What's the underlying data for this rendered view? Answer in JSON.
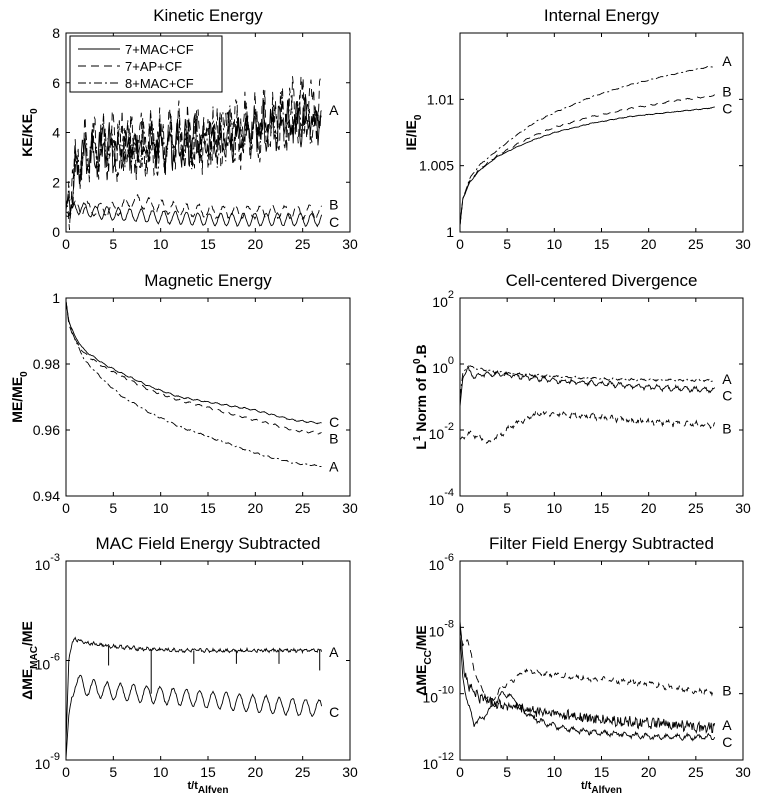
{
  "figure": {
    "n_panels": 6
  },
  "chart_data": [
    {
      "type": "line",
      "title": "Kinetic Energy",
      "ylabel": "KE/KE",
      "ylabel_sub": "0",
      "xlabel": "",
      "xlim": [
        0,
        30
      ],
      "ylim": [
        0,
        8
      ],
      "yscale": "linear",
      "xticks": [
        "0",
        "5",
        "10",
        "15",
        "20",
        "25",
        "30"
      ],
      "yticks": [
        {
          "v": 0,
          "t": "0"
        },
        {
          "v": 2,
          "t": "2"
        },
        {
          "v": 4,
          "t": "4"
        },
        {
          "v": 6,
          "t": "6"
        },
        {
          "v": 8,
          "t": "8"
        }
      ],
      "legend": [
        {
          "label": "7+MAC+CF",
          "dash": "solid"
        },
        {
          "label": "7+AP+CF",
          "dash": "dashed"
        },
        {
          "label": "8+MAC+CF",
          "dash": "dashdot"
        }
      ],
      "legend_position": "top-left",
      "series": [
        {
          "name": "A",
          "dash": "dashdot",
          "noise": 0.7,
          "osc": 0.6,
          "period": 0.9,
          "x": [
            0,
            0.5,
            1,
            2,
            4,
            8,
            12,
            16,
            20,
            24,
            27
          ],
          "y": [
            0.8,
            1.6,
            2.6,
            3.2,
            3.4,
            3.5,
            3.6,
            3.8,
            4.2,
            4.6,
            4.8
          ]
        },
        {
          "name": "A",
          "dash": "solid",
          "noise": 0.6,
          "osc": 0.5,
          "period": 0.9,
          "x": [
            0,
            0.5,
            1,
            2,
            4,
            8,
            12,
            16,
            20,
            24,
            27
          ],
          "y": [
            0.8,
            1.5,
            2.5,
            3.1,
            3.3,
            3.4,
            3.5,
            3.7,
            4.0,
            4.4,
            4.6
          ]
        },
        {
          "name": "A",
          "dash": "dashed",
          "noise": 0.7,
          "osc": 0.9,
          "period": 1.0,
          "x": [
            0,
            0.5,
            1,
            2,
            4,
            8,
            12,
            16,
            20,
            24,
            27
          ],
          "y": [
            0.8,
            1.5,
            2.6,
            3.2,
            3.4,
            3.5,
            3.7,
            3.9,
            4.2,
            4.7,
            5.2
          ]
        },
        {
          "name": "B",
          "dash": "dashed",
          "noise": 0.05,
          "osc": 0.25,
          "period": 1.3,
          "x": [
            0,
            1,
            3,
            5,
            6,
            7,
            9,
            12,
            16,
            20,
            24,
            27
          ],
          "y": [
            0.8,
            1.0,
            0.9,
            0.9,
            1.0,
            1.3,
            1.1,
            0.9,
            0.8,
            0.8,
            0.8,
            0.8
          ]
        },
        {
          "name": "C",
          "dash": "solid",
          "noise": 0.03,
          "osc": 0.25,
          "period": 1.2,
          "x": [
            0,
            1,
            3,
            6,
            10,
            15,
            20,
            27
          ],
          "y": [
            0.7,
            1.0,
            0.8,
            0.7,
            0.6,
            0.5,
            0.5,
            0.5
          ]
        }
      ],
      "curve_labels": [
        {
          "text": "A",
          "x": 27.8,
          "y": 4.9
        },
        {
          "text": "B",
          "x": 27.8,
          "y": 1.1
        },
        {
          "text": "C",
          "x": 27.8,
          "y": 0.4
        }
      ]
    },
    {
      "type": "line",
      "title": "Internal Energy",
      "ylabel": "IE/IE",
      "ylabel_sub": "0",
      "xlabel": "",
      "xlim": [
        0,
        30
      ],
      "ylim": [
        1.0,
        1.015
      ],
      "yscale": "linear",
      "xticks": [
        "0",
        "5",
        "10",
        "15",
        "20",
        "25",
        "30"
      ],
      "yticks": [
        {
          "v": 1.0,
          "t": "1"
        },
        {
          "v": 1.005,
          "t": "1.005"
        },
        {
          "v": 1.01,
          "t": "1.01"
        }
      ],
      "series": [
        {
          "name": "A",
          "dash": "dashdot",
          "noise": 2e-05,
          "osc": 3e-05,
          "period": 1.0,
          "x": [
            0,
            0.3,
            1,
            2,
            4,
            6,
            8,
            10,
            14,
            18,
            22,
            26,
            27
          ],
          "y": [
            1.0005,
            1.0025,
            1.004,
            1.005,
            1.0062,
            1.0073,
            1.0083,
            1.009,
            1.0102,
            1.0111,
            1.0118,
            1.0124,
            1.0125
          ]
        },
        {
          "name": "B",
          "dash": "dashed",
          "noise": 2e-05,
          "osc": 5e-05,
          "period": 1.0,
          "x": [
            0,
            0.3,
            1,
            2,
            4,
            6,
            8,
            10,
            14,
            18,
            22,
            26,
            27
          ],
          "y": [
            1.0005,
            1.0025,
            1.0038,
            1.0047,
            1.0058,
            1.0066,
            1.0073,
            1.0079,
            1.0087,
            1.0093,
            1.0098,
            1.0102,
            1.0103
          ]
        },
        {
          "name": "C",
          "dash": "solid",
          "noise": 2e-05,
          "osc": 2e-05,
          "period": 1.0,
          "x": [
            0,
            0.3,
            1,
            2,
            4,
            6,
            8,
            10,
            14,
            18,
            22,
            26,
            27
          ],
          "y": [
            1.0005,
            1.0025,
            1.0037,
            1.0046,
            1.0057,
            1.0064,
            1.007,
            1.0075,
            1.0082,
            1.0087,
            1.009,
            1.0093,
            1.0094
          ]
        }
      ],
      "curve_labels": [
        {
          "text": "A",
          "x": 27.8,
          "y": 1.0129
        },
        {
          "text": "B",
          "x": 27.8,
          "y": 1.0106
        },
        {
          "text": "C",
          "x": 27.8,
          "y": 1.0093
        }
      ]
    },
    {
      "type": "line",
      "title": "Magnetic Energy",
      "ylabel": "ME/ME",
      "ylabel_sub": "0",
      "xlabel": "",
      "xlim": [
        0,
        30
      ],
      "ylim": [
        0.94,
        1.0
      ],
      "yscale": "linear",
      "xticks": [
        "0",
        "5",
        "10",
        "15",
        "20",
        "25",
        "30"
      ],
      "yticks": [
        {
          "v": 0.94,
          "t": "0.94"
        },
        {
          "v": 0.96,
          "t": "0.96"
        },
        {
          "v": 0.98,
          "t": "0.98"
        },
        {
          "v": 1.0,
          "t": "1"
        }
      ],
      "series": [
        {
          "name": "A",
          "dash": "dashdot",
          "noise": 0.0001,
          "osc": 0.0002,
          "period": 1.0,
          "x": [
            0,
            0.3,
            1,
            2,
            4,
            6,
            9,
            12,
            16,
            20,
            24,
            27
          ],
          "y": [
            0.999,
            0.993,
            0.987,
            0.981,
            0.975,
            0.97,
            0.965,
            0.961,
            0.957,
            0.953,
            0.95,
            0.949
          ]
        },
        {
          "name": "B",
          "dash": "dashed",
          "noise": 0.0001,
          "osc": 0.0003,
          "period": 1.0,
          "x": [
            0,
            0.3,
            1,
            2,
            4,
            6,
            9,
            12,
            16,
            20,
            24,
            27
          ],
          "y": [
            0.999,
            0.992,
            0.987,
            0.983,
            0.979,
            0.976,
            0.972,
            0.969,
            0.966,
            0.963,
            0.96,
            0.959
          ]
        },
        {
          "name": "C",
          "dash": "solid",
          "noise": 0.0001,
          "osc": 0.0002,
          "period": 1.0,
          "x": [
            0,
            0.3,
            1,
            2,
            4,
            6,
            9,
            12,
            16,
            20,
            24,
            27
          ],
          "y": [
            0.999,
            0.993,
            0.988,
            0.984,
            0.98,
            0.977,
            0.973,
            0.97,
            0.968,
            0.966,
            0.963,
            0.962
          ]
        }
      ],
      "curve_labels": [
        {
          "text": "C",
          "x": 27.8,
          "y": 0.9625
        },
        {
          "text": "B",
          "x": 27.8,
          "y": 0.9575
        },
        {
          "text": "A",
          "x": 27.8,
          "y": 0.949
        }
      ]
    },
    {
      "type": "line",
      "title": "Cell-centered Divergence",
      "ylabel": "L",
      "ylabel_sup": "1",
      "ylabel_rest": " Norm of D",
      "ylabel_sup2": "0",
      "ylabel_end": ".B",
      "xlabel": "",
      "xlim": [
        0,
        30
      ],
      "ylim": [
        -4,
        2
      ],
      "yscale": "log10",
      "xticks": [
        "0",
        "5",
        "10",
        "15",
        "20",
        "25",
        "30"
      ],
      "yticks": [
        {
          "v": -4,
          "t": "10",
          "e": "-4"
        },
        {
          "v": -2,
          "t": "10",
          "e": "-2"
        },
        {
          "v": 0,
          "t": "10",
          "e": "0"
        },
        {
          "v": 2,
          "t": "10",
          "e": "2"
        }
      ],
      "series": [
        {
          "name": "A",
          "dash": "dashdot",
          "noise": 0.02,
          "osc": 0.02,
          "period": 1.0,
          "x": [
            0,
            0.3,
            0.8,
            2,
            4,
            6,
            10,
            15,
            20,
            27
          ],
          "y": [
            -1.0,
            -0.3,
            -0.05,
            -0.15,
            -0.25,
            -0.3,
            -0.38,
            -0.45,
            -0.48,
            -0.5
          ]
        },
        {
          "name": "B",
          "dash": "dashed",
          "noise": 0.06,
          "osc": 0.05,
          "period": 1.0,
          "x": [
            0,
            0.5,
            1,
            2,
            3,
            4,
            6,
            8,
            10,
            14,
            18,
            22,
            27
          ],
          "y": [
            -2.3,
            -2.2,
            -2.1,
            -2.2,
            -2.4,
            -2.2,
            -1.8,
            -1.5,
            -1.5,
            -1.6,
            -1.7,
            -1.8,
            -1.85
          ]
        },
        {
          "name": "C",
          "dash": "solid",
          "noise": 0.04,
          "osc": 0.06,
          "period": 1.0,
          "x": [
            0,
            0.3,
            0.8,
            1.5,
            2.5,
            4,
            7,
            10,
            15,
            20,
            27
          ],
          "y": [
            -1.3,
            -0.4,
            -0.15,
            -0.4,
            -0.3,
            -0.3,
            -0.4,
            -0.5,
            -0.6,
            -0.7,
            -0.8
          ]
        }
      ],
      "curve_labels": [
        {
          "text": "A",
          "x": 27.8,
          "y": -0.45
        },
        {
          "text": "C",
          "x": 27.8,
          "y": -0.95
        },
        {
          "text": "B",
          "x": 27.8,
          "y": -1.95
        }
      ]
    },
    {
      "type": "line",
      "title": "MAC Field Energy Subtracted",
      "ylabel": "ΔME",
      "ylabel_sub": "MAC",
      "ylabel_end": "/ME",
      "xlabel": "t/t",
      "xlabel_sub": "Alfven",
      "xlim": [
        0,
        30
      ],
      "ylim": [
        -9,
        -3
      ],
      "yscale": "log10",
      "xticks": [
        "0",
        "5",
        "10",
        "15",
        "20",
        "25",
        "30"
      ],
      "yticks": [
        {
          "v": -9,
          "t": "10",
          "e": "-9"
        },
        {
          "v": -6,
          "t": "10",
          "e": "-6"
        },
        {
          "v": -3,
          "t": "10",
          "e": "-3"
        }
      ],
      "series": [
        {
          "name": "A",
          "dash": "solid",
          "noise": 0.04,
          "osc": 0.03,
          "period": 0.7,
          "x": [
            0,
            0.3,
            0.6,
            1,
            2,
            4,
            8,
            12,
            16,
            20,
            24,
            27
          ],
          "y": [
            -8.5,
            -6.0,
            -5.5,
            -5.35,
            -5.45,
            -5.55,
            -5.65,
            -5.7,
            -5.7,
            -5.7,
            -5.7,
            -5.7
          ]
        },
        {
          "name": "C",
          "dash": "solid",
          "noise": 0.03,
          "osc": 0.25,
          "period": 1.4,
          "x": [
            0,
            0.3,
            0.6,
            1,
            2,
            4,
            8,
            12,
            16,
            20,
            24,
            27
          ],
          "y": [
            -9.0,
            -7.8,
            -7.0,
            -6.6,
            -6.8,
            -6.9,
            -7.0,
            -7.1,
            -7.2,
            -7.3,
            -7.4,
            -7.45
          ]
        }
      ],
      "spikes": [
        {
          "x": 4.5,
          "y": -6.15
        },
        {
          "x": 9.0,
          "y": -7.0
        },
        {
          "x": 13.5,
          "y": -6.1
        },
        {
          "x": 18.0,
          "y": -6.1
        },
        {
          "x": 22.5,
          "y": -6.1
        },
        {
          "x": 26.8,
          "y": -6.3
        }
      ],
      "curve_labels": [
        {
          "text": "A",
          "x": 27.8,
          "y": -5.75
        },
        {
          "text": "C",
          "x": 27.8,
          "y": -7.55
        }
      ]
    },
    {
      "type": "line",
      "title": "Filter Field Energy Subtracted",
      "ylabel": "ΔME",
      "ylabel_sub": "CC",
      "ylabel_end": "/ME",
      "xlabel": "t/t",
      "xlabel_sub": "Alfven",
      "xlim": [
        0,
        30
      ],
      "ylim": [
        -12,
        -6
      ],
      "yscale": "log10",
      "xticks": [
        "0",
        "5",
        "10",
        "15",
        "20",
        "25",
        "30"
      ],
      "yticks": [
        {
          "v": -12,
          "t": "10",
          "e": "-12"
        },
        {
          "v": -10,
          "t": "10",
          "e": "-10"
        },
        {
          "v": -8,
          "t": "10",
          "e": "-8"
        },
        {
          "v": -6,
          "t": "10",
          "e": "-6"
        }
      ],
      "series": [
        {
          "name": "B",
          "dash": "dashed",
          "noise": 0.05,
          "osc": 0.05,
          "period": 1.0,
          "x": [
            0,
            0.3,
            0.8,
            1.5,
            2.5,
            3.5,
            4.5,
            5.5,
            7,
            9,
            12,
            16,
            20,
            24,
            27
          ],
          "y": [
            -8.0,
            -8.6,
            -8.3,
            -9.3,
            -10.0,
            -10.2,
            -9.8,
            -9.6,
            -9.3,
            -9.4,
            -9.5,
            -9.6,
            -9.7,
            -9.9,
            -9.95
          ]
        },
        {
          "name": "A",
          "dash": "solid",
          "noise": 0.15,
          "osc": 0.04,
          "period": 0.6,
          "x": [
            0,
            0.2,
            0.5,
            1,
            2,
            4,
            7,
            10,
            15,
            20,
            25,
            27
          ],
          "y": [
            -7.8,
            -8.5,
            -9.4,
            -9.8,
            -10.1,
            -10.3,
            -10.5,
            -10.6,
            -10.8,
            -10.9,
            -11.0,
            -11.0
          ]
        },
        {
          "name": "C",
          "dash": "solid",
          "noise": 0.05,
          "osc": 0.06,
          "period": 1.1,
          "x": [
            0,
            0.3,
            0.8,
            1.5,
            2.5,
            3.5,
            4.5,
            5.5,
            7,
            9,
            12,
            16,
            20,
            24,
            27
          ],
          "y": [
            -8.2,
            -9.5,
            -10.3,
            -10.9,
            -10.7,
            -10.4,
            -10.0,
            -10.1,
            -10.6,
            -10.9,
            -11.1,
            -11.2,
            -11.3,
            -11.3,
            -11.3
          ]
        }
      ],
      "curve_labels": [
        {
          "text": "B",
          "x": 27.8,
          "y": -9.9
        },
        {
          "text": "A",
          "x": 27.8,
          "y": -10.95
        },
        {
          "text": "C",
          "x": 27.8,
          "y": -11.45
        }
      ]
    }
  ]
}
